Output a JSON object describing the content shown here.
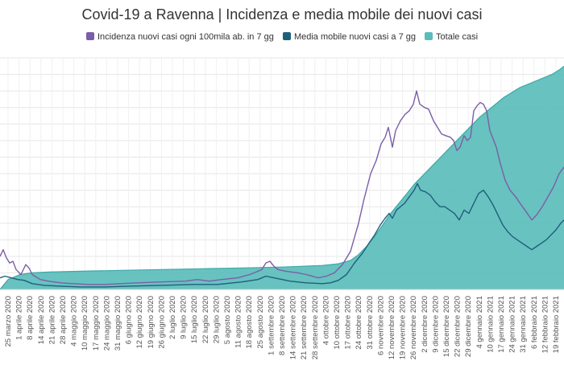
{
  "chart_data": {
    "type": "area",
    "title": "Covid-19 a Ravenna | Incidenza e media mobile dei nuovi casi",
    "legend_position": "top",
    "grid": true,
    "colors": {
      "incidence": "#7b5ea7",
      "moving_avg": "#1f5f7a",
      "total_area": "#5bbdbb",
      "total_line": "#3aa9a6",
      "grid": "#e6e6e6"
    },
    "x_tick_labels": [
      "25 marzo 2020",
      "1 aprile 2020",
      "8 aprile 2020",
      "14 aprile 2020",
      "21 aprile 2020",
      "28 aprile 2020",
      "4 maggio 2020",
      "10 maggio 2020",
      "17 maggio 2020",
      "24 maggio 2020",
      "31 maggio 2020",
      "6 giugno 2020",
      "12 giugno 2020",
      "19 giugno 2020",
      "26 giugno 2020",
      "2 luglio 2020",
      "9 luglio 2020",
      "15 luglio 2020",
      "22 luglio 2020",
      "29 luglio 2020",
      "5 agosto 2020",
      "11 agosto 2020",
      "18 agosto 2020",
      "25 agosto 2020",
      "1 settembre 2020",
      "8 settembre 2020",
      "14 settembre 2020",
      "21 settembre 2020",
      "28 settembre 2020",
      "4 ottobre 2020",
      "10 ottobre 2020",
      "17 ottobre 2020",
      "24 ottobre 2020",
      "31 ottobre 2020",
      "6 novembre 2020",
      "12 novembre 2020",
      "19 novembre 2020",
      "26 novembre 2020",
      "2 dicembre 2020",
      "9 dicembre 2020",
      "15 dicembre 2020",
      "22 dicembre 2020",
      "29 dicembre 2020",
      "4 gennaio 2021",
      "10 gennaio 2021",
      "17 gennaio 2021",
      "24 gennaio 2021",
      "31 gennaio 2021",
      "6 febbraio 2021",
      "12 febbraio 2021",
      "19 febbraio 2021"
    ],
    "y_range": [
      0,
      14
    ],
    "series": [
      {
        "key": "incidence",
        "name": "Incidenza nuovi casi ogni 100mila ab. in 7 gg",
        "values": [
          [
            0,
            2.0
          ],
          [
            4,
            2.4
          ],
          [
            8,
            1.9
          ],
          [
            12,
            1.6
          ],
          [
            16,
            1.7
          ],
          [
            20,
            1.2
          ],
          [
            26,
            0.9
          ],
          [
            32,
            1.5
          ],
          [
            36,
            1.3
          ],
          [
            40,
            0.9
          ],
          [
            50,
            0.6
          ],
          [
            60,
            0.5
          ],
          [
            75,
            0.4
          ],
          [
            90,
            0.35
          ],
          [
            110,
            0.3
          ],
          [
            130,
            0.3
          ],
          [
            150,
            0.35
          ],
          [
            170,
            0.4
          ],
          [
            200,
            0.45
          ],
          [
            230,
            0.5
          ],
          [
            245,
            0.6
          ],
          [
            260,
            0.5
          ],
          [
            275,
            0.6
          ],
          [
            295,
            0.7
          ],
          [
            310,
            0.9
          ],
          [
            320,
            1.1
          ],
          [
            325,
            1.2
          ],
          [
            330,
            1.6
          ],
          [
            335,
            1.7
          ],
          [
            340,
            1.4
          ],
          [
            345,
            1.2
          ],
          [
            355,
            1.1
          ],
          [
            370,
            1.0
          ],
          [
            380,
            0.9
          ],
          [
            395,
            0.7
          ],
          [
            405,
            0.8
          ],
          [
            415,
            1.0
          ],
          [
            425,
            1.5
          ],
          [
            435,
            2.3
          ],
          [
            445,
            4.0
          ],
          [
            452,
            5.5
          ],
          [
            460,
            7.0
          ],
          [
            467,
            7.8
          ],
          [
            473,
            8.8
          ],
          [
            478,
            9.2
          ],
          [
            482,
            9.8
          ],
          [
            487,
            8.6
          ],
          [
            491,
            9.6
          ],
          [
            497,
            10.2
          ],
          [
            503,
            10.6
          ],
          [
            508,
            10.8
          ],
          [
            513,
            11.2
          ],
          [
            517,
            12.0
          ],
          [
            521,
            11.2
          ],
          [
            527,
            11.0
          ],
          [
            532,
            10.9
          ],
          [
            538,
            10.2
          ],
          [
            543,
            9.8
          ],
          [
            548,
            9.4
          ],
          [
            553,
            9.3
          ],
          [
            559,
            9.2
          ],
          [
            563,
            9.0
          ],
          [
            567,
            8.4
          ],
          [
            571,
            8.6
          ],
          [
            576,
            9.3
          ],
          [
            580,
            9.0
          ],
          [
            584,
            9.2
          ],
          [
            588,
            10.8
          ],
          [
            592,
            11.1
          ],
          [
            596,
            11.3
          ],
          [
            600,
            11.2
          ],
          [
            604,
            10.8
          ],
          [
            608,
            9.6
          ],
          [
            612,
            9.1
          ],
          [
            616,
            8.6
          ],
          [
            621,
            7.6
          ],
          [
            627,
            6.6
          ],
          [
            633,
            6.0
          ],
          [
            640,
            5.6
          ],
          [
            647,
            5.1
          ],
          [
            653,
            4.7
          ],
          [
            660,
            4.2
          ],
          [
            666,
            4.5
          ],
          [
            673,
            5.0
          ],
          [
            680,
            5.6
          ],
          [
            687,
            6.2
          ],
          [
            694,
            7.0
          ],
          [
            700,
            7.4
          ]
        ]
      },
      {
        "key": "moving_avg",
        "name": "Media mobile nuovi casi a 7 gg",
        "values": [
          [
            0,
            0.7
          ],
          [
            6,
            0.8
          ],
          [
            14,
            0.7
          ],
          [
            22,
            0.6
          ],
          [
            30,
            0.55
          ],
          [
            40,
            0.35
          ],
          [
            55,
            0.25
          ],
          [
            75,
            0.2
          ],
          [
            100,
            0.15
          ],
          [
            130,
            0.15
          ],
          [
            160,
            0.2
          ],
          [
            200,
            0.25
          ],
          [
            240,
            0.3
          ],
          [
            270,
            0.3
          ],
          [
            300,
            0.45
          ],
          [
            320,
            0.6
          ],
          [
            330,
            0.8
          ],
          [
            340,
            0.7
          ],
          [
            360,
            0.5
          ],
          [
            380,
            0.4
          ],
          [
            400,
            0.35
          ],
          [
            410,
            0.4
          ],
          [
            420,
            0.55
          ],
          [
            430,
            0.9
          ],
          [
            440,
            1.6
          ],
          [
            450,
            2.2
          ],
          [
            458,
            2.8
          ],
          [
            465,
            3.3
          ],
          [
            472,
            3.9
          ],
          [
            478,
            4.3
          ],
          [
            483,
            4.6
          ],
          [
            487,
            4.3
          ],
          [
            492,
            4.8
          ],
          [
            497,
            5.0
          ],
          [
            502,
            5.2
          ],
          [
            508,
            5.6
          ],
          [
            514,
            6.0
          ],
          [
            518,
            6.4
          ],
          [
            522,
            6.0
          ],
          [
            528,
            5.9
          ],
          [
            534,
            5.7
          ],
          [
            540,
            5.3
          ],
          [
            546,
            5.0
          ],
          [
            552,
            5.0
          ],
          [
            558,
            4.8
          ],
          [
            564,
            4.6
          ],
          [
            570,
            4.2
          ],
          [
            576,
            4.8
          ],
          [
            582,
            4.6
          ],
          [
            588,
            5.2
          ],
          [
            594,
            5.8
          ],
          [
            600,
            6.0
          ],
          [
            606,
            5.6
          ],
          [
            612,
            5.1
          ],
          [
            618,
            4.5
          ],
          [
            624,
            3.9
          ],
          [
            630,
            3.5
          ],
          [
            636,
            3.2
          ],
          [
            642,
            3.0
          ],
          [
            648,
            2.8
          ],
          [
            654,
            2.6
          ],
          [
            660,
            2.4
          ],
          [
            666,
            2.6
          ],
          [
            672,
            2.8
          ],
          [
            678,
            3.0
          ],
          [
            684,
            3.3
          ],
          [
            690,
            3.6
          ],
          [
            696,
            4.0
          ],
          [
            700,
            4.2
          ]
        ]
      },
      {
        "key": "total",
        "name": "Totale casi",
        "values": [
          [
            0,
            0.0
          ],
          [
            10,
            0.6
          ],
          [
            25,
            0.9
          ],
          [
            40,
            1.0
          ],
          [
            60,
            1.05
          ],
          [
            100,
            1.1
          ],
          [
            150,
            1.15
          ],
          [
            200,
            1.2
          ],
          [
            250,
            1.25
          ],
          [
            300,
            1.3
          ],
          [
            350,
            1.35
          ],
          [
            400,
            1.45
          ],
          [
            420,
            1.55
          ],
          [
            435,
            1.75
          ],
          [
            445,
            2.1
          ],
          [
            455,
            2.6
          ],
          [
            465,
            3.2
          ],
          [
            475,
            3.9
          ],
          [
            485,
            4.6
          ],
          [
            495,
            5.2
          ],
          [
            505,
            5.8
          ],
          [
            515,
            6.4
          ],
          [
            525,
            6.9
          ],
          [
            535,
            7.4
          ],
          [
            545,
            7.9
          ],
          [
            555,
            8.4
          ],
          [
            565,
            8.9
          ],
          [
            575,
            9.4
          ],
          [
            585,
            9.9
          ],
          [
            595,
            10.4
          ],
          [
            605,
            10.8
          ],
          [
            615,
            11.2
          ],
          [
            625,
            11.6
          ],
          [
            635,
            11.9
          ],
          [
            645,
            12.2
          ],
          [
            655,
            12.4
          ],
          [
            665,
            12.6
          ],
          [
            675,
            12.8
          ],
          [
            685,
            13.0
          ],
          [
            695,
            13.3
          ],
          [
            700,
            13.5
          ]
        ]
      }
    ]
  }
}
